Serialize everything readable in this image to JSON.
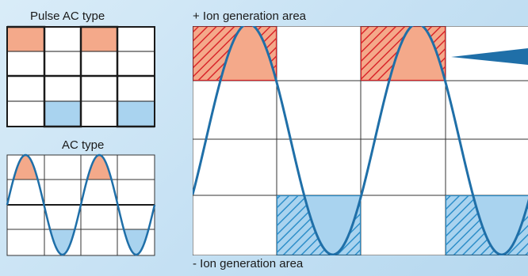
{
  "labels": {
    "pulse_ac_type": "Pulse AC type",
    "ac_type": "AC type",
    "positive_ion_area": "+ Ion generation area",
    "negative_ion_area": "- Ion generation area"
  },
  "colors": {
    "positive_fill": "#f4a98a",
    "negative_fill": "#a9d3ef",
    "positive_hatch": "#d9262b",
    "negative_hatch": "#2d8ec9",
    "wave": "#1f6fa8",
    "grid_line": "#1a1a1a",
    "cell_bg": "#ffffff"
  }
}
